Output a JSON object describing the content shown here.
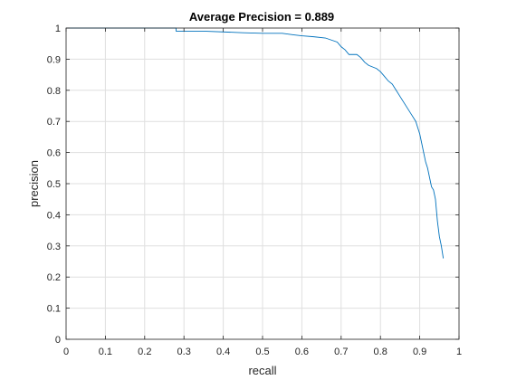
{
  "chart_data": {
    "type": "line",
    "title": "Average Precision = 0.889",
    "xlabel": "recall",
    "ylabel": "precision",
    "xlim": [
      0,
      1
    ],
    "ylim": [
      0,
      1
    ],
    "xticks": [
      "0",
      "0.1",
      "0.2",
      "0.3",
      "0.4",
      "0.5",
      "0.6",
      "0.7",
      "0.8",
      "0.9",
      "1"
    ],
    "yticks": [
      "0",
      "0.1",
      "0.2",
      "0.3",
      "0.4",
      "0.5",
      "0.6",
      "0.7",
      "0.8",
      "0.9",
      "1"
    ],
    "grid": true,
    "color": "#0072bd",
    "series": [
      {
        "x": [
          0,
          0.28,
          0.28,
          0.35,
          0.45,
          0.5,
          0.55,
          0.58,
          0.6,
          0.63,
          0.66,
          0.69,
          0.7,
          0.71,
          0.72,
          0.74,
          0.75,
          0.76,
          0.77,
          0.78,
          0.79,
          0.8,
          0.81,
          0.82,
          0.83,
          0.84,
          0.85,
          0.86,
          0.87,
          0.88,
          0.89,
          0.895,
          0.9,
          0.905,
          0.91,
          0.915,
          0.92,
          0.925,
          0.93,
          0.935,
          0.94,
          0.945,
          0.95,
          0.955,
          0.96
        ],
        "y": [
          1.0,
          1.0,
          0.99,
          0.99,
          0.985,
          0.983,
          0.983,
          0.978,
          0.975,
          0.972,
          0.968,
          0.955,
          0.94,
          0.93,
          0.915,
          0.915,
          0.905,
          0.89,
          0.88,
          0.875,
          0.87,
          0.86,
          0.845,
          0.83,
          0.82,
          0.8,
          0.78,
          0.76,
          0.74,
          0.72,
          0.7,
          0.68,
          0.66,
          0.63,
          0.6,
          0.57,
          0.55,
          0.52,
          0.49,
          0.48,
          0.45,
          0.38,
          0.33,
          0.3,
          0.26
        ]
      }
    ]
  }
}
